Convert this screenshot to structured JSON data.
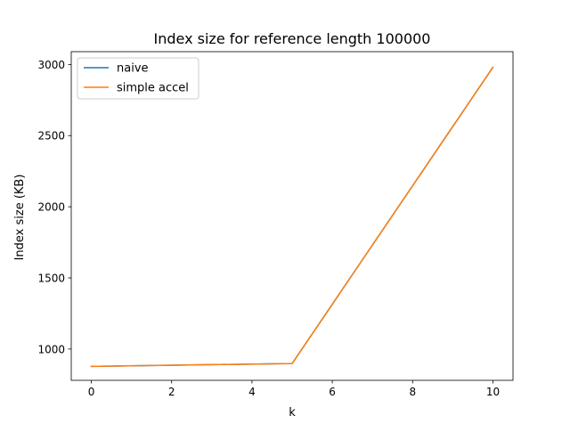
{
  "chart_data": {
    "type": "line",
    "title": "Index size for reference length 100000",
    "xlabel": "k",
    "ylabel": "Index size (KB)",
    "x": [
      0,
      5,
      10
    ],
    "series": [
      {
        "name": "naive",
        "color": "#1f77b4",
        "values": [
          878,
          898,
          2980
        ]
      },
      {
        "name": "simple accel",
        "color": "#ff7f0e",
        "values": [
          878,
          898,
          2980
        ]
      }
    ],
    "xlim": [
      -0.5,
      10.5
    ],
    "ylim": [
      780,
      3090
    ],
    "xticks": [
      0,
      2,
      4,
      6,
      8,
      10
    ],
    "yticks": [
      1000,
      1500,
      2000,
      2500,
      3000
    ],
    "grid": false,
    "legend_position": "top-left"
  }
}
